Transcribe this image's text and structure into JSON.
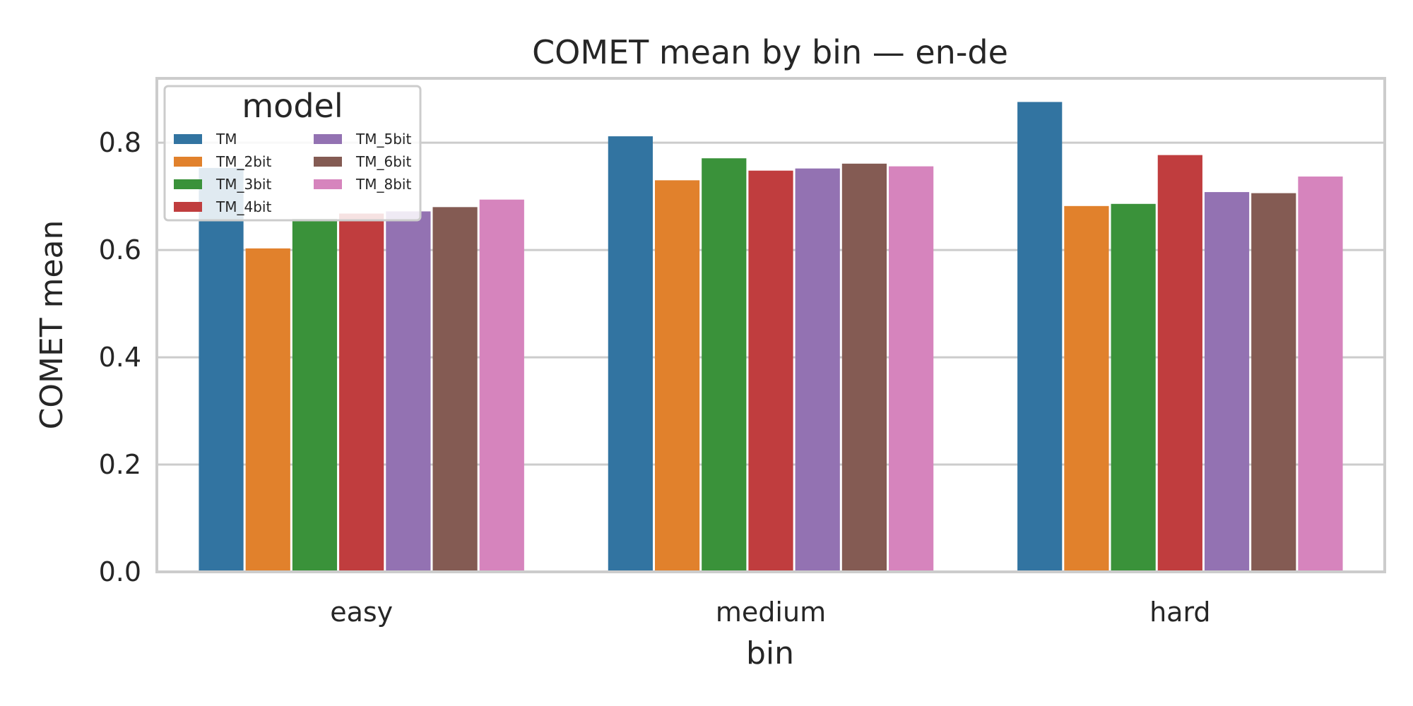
{
  "chart_data": {
    "type": "bar",
    "title": "COMET mean by bin — en-de",
    "xlabel": "bin",
    "ylabel": "COMET mean",
    "ylim": [
      0,
      0.92
    ],
    "yticks": [
      0.0,
      0.2,
      0.4,
      0.6,
      0.8
    ],
    "ytick_labels": [
      "0.0",
      "0.2",
      "0.4",
      "0.6",
      "0.8"
    ],
    "categories": [
      "easy",
      "medium",
      "hard"
    ],
    "grid": true,
    "legend": {
      "title": "model",
      "placement": "top-left",
      "columns": 2
    },
    "series": [
      {
        "name": "TM",
        "color": "#3274a1",
        "values": [
          0.753,
          0.812,
          0.876
        ]
      },
      {
        "name": "TM_2bit",
        "color": "#e1812c",
        "values": [
          0.603,
          0.73,
          0.682
        ]
      },
      {
        "name": "TM_3bit",
        "color": "#3a923a",
        "values": [
          0.658,
          0.771,
          0.686
        ]
      },
      {
        "name": "TM_4bit",
        "color": "#c03d3e",
        "values": [
          0.668,
          0.748,
          0.777
        ]
      },
      {
        "name": "TM_5bit",
        "color": "#9372b2",
        "values": [
          0.672,
          0.752,
          0.708
        ]
      },
      {
        "name": "TM_6bit",
        "color": "#845b53",
        "values": [
          0.68,
          0.761,
          0.706
        ]
      },
      {
        "name": "TM_8bit",
        "color": "#d684bd",
        "values": [
          0.694,
          0.756,
          0.737
        ]
      }
    ]
  }
}
